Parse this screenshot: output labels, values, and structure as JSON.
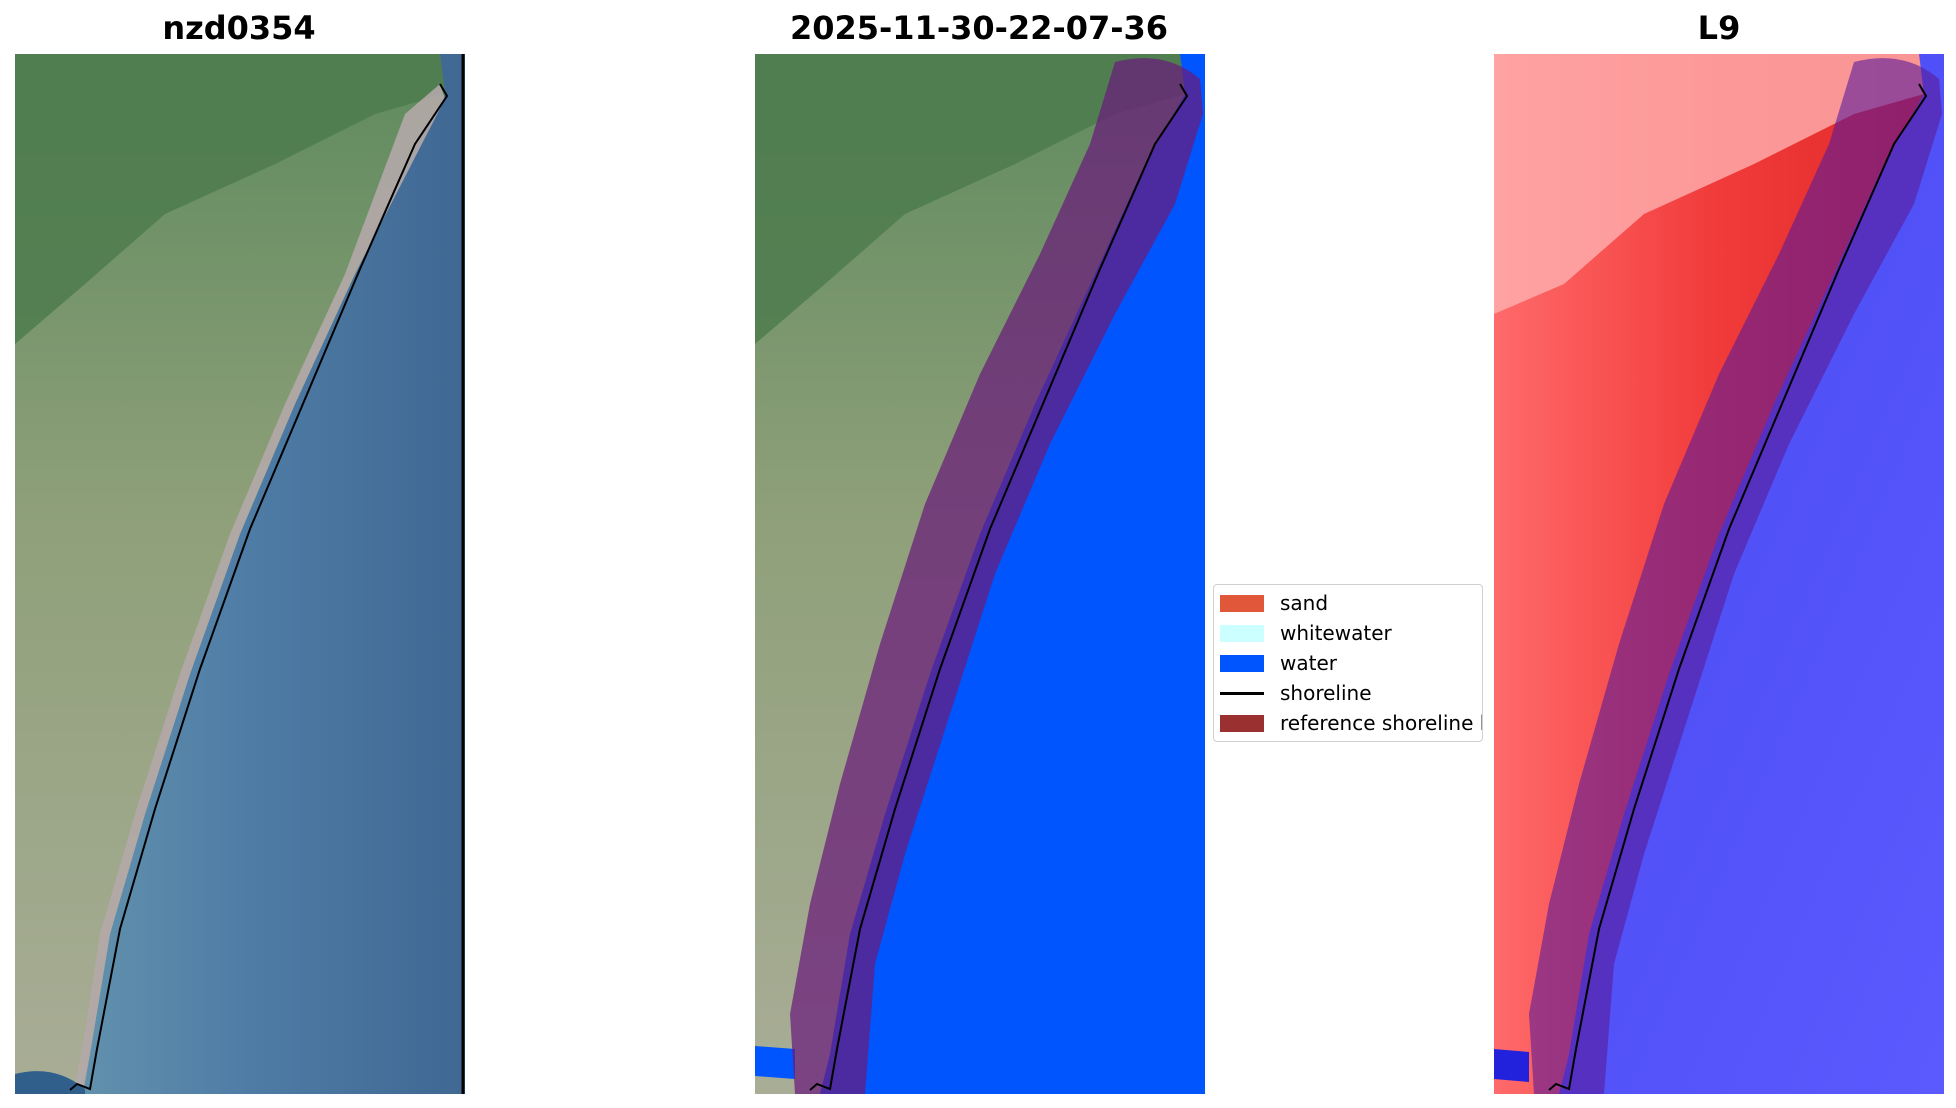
{
  "panels": [
    {
      "title": "nzd0354",
      "kind": "rgb"
    },
    {
      "title": "2025-11-30-22-07-36",
      "kind": "classified"
    },
    {
      "title": "L9",
      "kind": "index"
    }
  ],
  "legend": {
    "items": [
      {
        "label": "sand",
        "color": "#e0573a",
        "kind": "patch"
      },
      {
        "label": "whitewater",
        "color": "#ccffff",
        "kind": "patch"
      },
      {
        "label": "water",
        "color": "#0055ff",
        "kind": "patch"
      },
      {
        "label": "shoreline",
        "color": "#000000",
        "kind": "line"
      },
      {
        "label": "reference shoreline b",
        "color": "#9b3030",
        "kind": "patch"
      }
    ]
  },
  "colors": {
    "ocean": "#47709a",
    "land": "#a8ab8c",
    "hills": "#4f7a50",
    "classified_water": "#0055ff",
    "buffer": "#7a1f6a",
    "index_land": "#f43a3a",
    "index_water": "#3333ee"
  }
}
